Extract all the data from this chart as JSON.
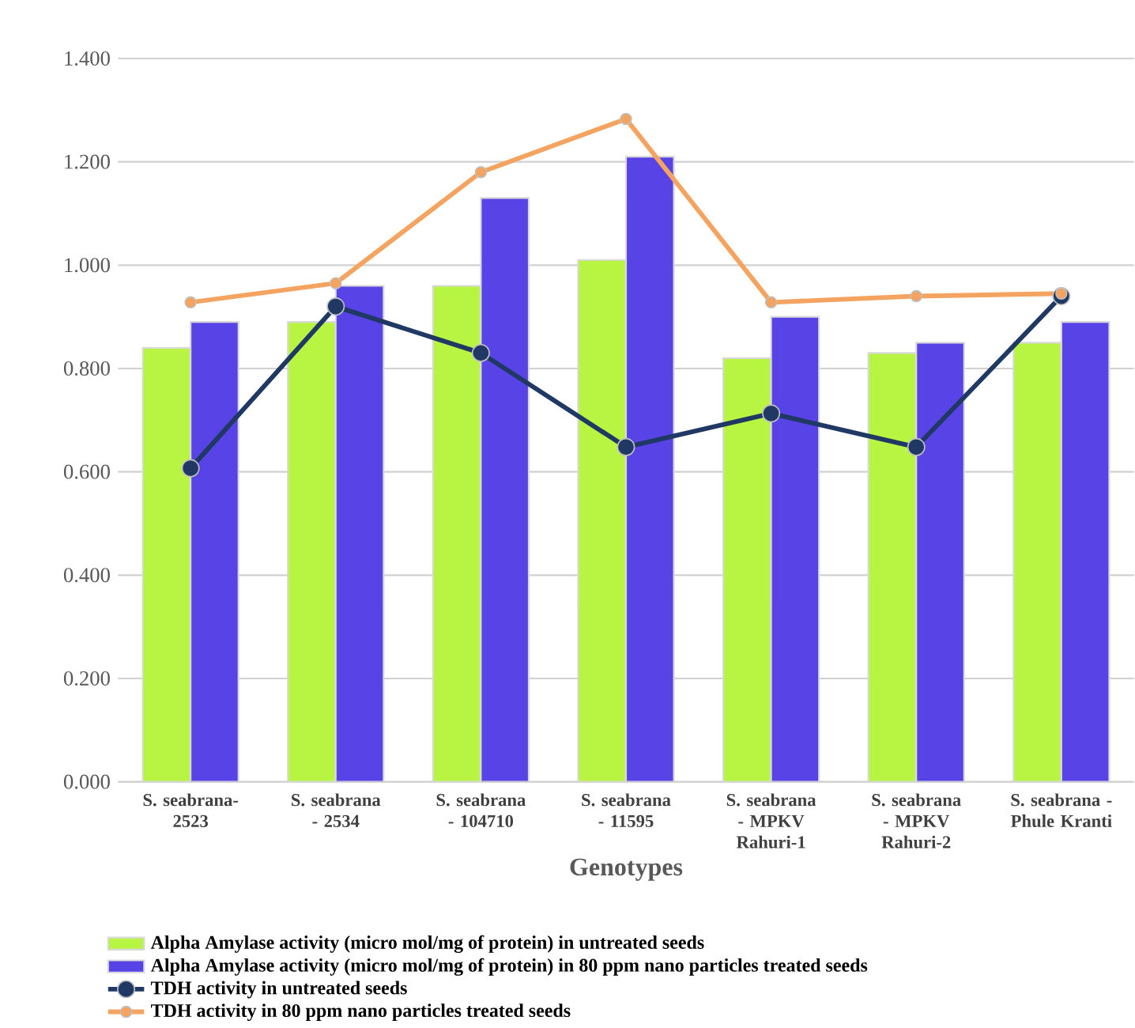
{
  "chart_data": {
    "type": "bar",
    "xlabel": "Genotypes",
    "categories": [
      "S. seabrana-2523",
      "S. seabrana - 2534",
      "S. seabrana - 104710",
      "S. seabrana - 11595",
      "S. seabrana - MPKV Rahuri-1",
      "S. seabrana - MPKV Rahuri-2",
      "S. seabrana - Phule Kranti"
    ],
    "series": [
      {
        "name": "Alpha Amylase activity  (micro mol/mg of protein) in  untreated seeds",
        "color": "#b8f542",
        "values": [
          0.84,
          0.89,
          0.96,
          1.01,
          0.82,
          0.83,
          0.85
        ]
      },
      {
        "name": "Alpha Amylase activity  (micro mol/mg of protein) in  80 ppm  nano particles treated seeds",
        "color": "#5843e6",
        "values": [
          0.89,
          0.96,
          1.13,
          1.21,
          0.9,
          0.85,
          0.89
        ]
      },
      {
        "name": "TDH activity in  untreated seeds",
        "type": "line",
        "color": "#1f3864",
        "values": [
          0.607,
          0.92,
          0.83,
          0.648,
          0.713,
          0.648,
          0.94
        ]
      },
      {
        "name": "TDH activity in  80 ppm  nano particles treated seeds",
        "type": "line",
        "color": "#f4a460",
        "values": [
          0.928,
          0.965,
          1.18,
          1.283,
          0.928,
          0.94,
          0.945
        ]
      }
    ],
    "ylim": [
      0,
      1.4
    ],
    "yticks": [
      {
        "value": 0,
        "label": "0.000"
      },
      {
        "value": 0.2,
        "label": "0.200"
      },
      {
        "value": 0.4,
        "label": "0.400"
      },
      {
        "value": 0.6,
        "label": "0.600"
      },
      {
        "value": 0.8,
        "label": "0.800"
      },
      {
        "value": 1.0,
        "label": "1.000"
      },
      {
        "value": 1.2,
        "label": "1.200"
      },
      {
        "value": 1.4,
        "label": "1.400"
      }
    ],
    "grid": "y",
    "legend": "bottom",
    "marker": "circle"
  }
}
